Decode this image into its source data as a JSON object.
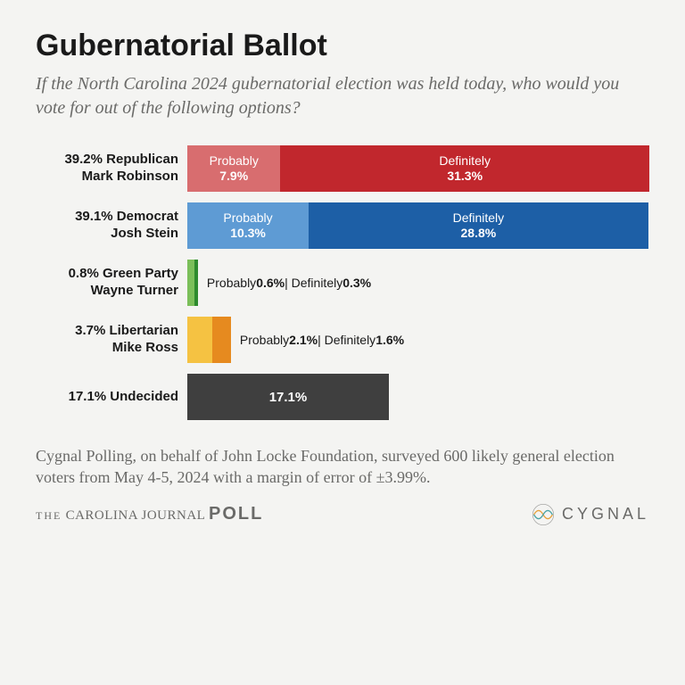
{
  "title": "Gubernatorial Ballot",
  "subtitle": "If the North Carolina 2024 gubernatorial election was held today, who would you vote for out of the following options?",
  "chart": {
    "type": "stacked-bar-horizontal",
    "max_percent": 39.2,
    "rows": [
      {
        "label_line1": "39.2% Republican",
        "label_line2": "Mark Robinson",
        "segments": [
          {
            "title": "Probably",
            "value": "7.9%",
            "pct": 7.9,
            "color": "#d86d6f",
            "in_bar": true
          },
          {
            "title": "Definitely",
            "value": "31.3%",
            "pct": 31.3,
            "color": "#c1272d",
            "in_bar": true
          }
        ]
      },
      {
        "label_line1": "39.1% Democrat",
        "label_line2": "Josh Stein",
        "segments": [
          {
            "title": "Probably",
            "value": "10.3%",
            "pct": 10.3,
            "color": "#5e9bd4",
            "in_bar": true
          },
          {
            "title": "Definitely",
            "value": "28.8%",
            "pct": 28.8,
            "color": "#1d5fa6",
            "in_bar": true
          }
        ]
      },
      {
        "label_line1": "0.8% Green Party",
        "label_line2": "Wayne Turner",
        "segments": [
          {
            "title": "Probably",
            "value": "0.6%",
            "pct": 0.6,
            "color": "#7bbf5a",
            "in_bar": false
          },
          {
            "title": "Definitely",
            "value": "0.3%",
            "pct": 0.3,
            "color": "#2e8b2e",
            "in_bar": false
          }
        ],
        "outside_text_parts": [
          "Probably ",
          "0.6%",
          " | Definitely ",
          "0.3%"
        ]
      },
      {
        "label_line1": "3.7% Libertarian",
        "label_line2": "Mike Ross",
        "segments": [
          {
            "title": "Probably",
            "value": "2.1%",
            "pct": 2.1,
            "color": "#f5c242",
            "in_bar": false
          },
          {
            "title": "Definitely",
            "value": "1.6%",
            "pct": 1.6,
            "color": "#e68a1f",
            "in_bar": false
          }
        ],
        "outside_text_parts": [
          "Probably ",
          "2.1%",
          " | Definitely ",
          "1.6%"
        ]
      },
      {
        "label_line1": "17.1% Undecided",
        "label_line2": "",
        "single": {
          "value": "17.1%",
          "pct": 17.1,
          "color": "#3f3f3f"
        }
      }
    ]
  },
  "footer_note": "Cygnal Polling, on behalf of John Locke Foundation, surveyed 600 likely general election voters from May 4-5, 2024 with a margin of error of ±3.99%.",
  "logo_left": {
    "thin": "THE",
    "name": "CAROLINA JOURNAL",
    "bold": "POLL"
  },
  "logo_right": "CYGNAL"
}
